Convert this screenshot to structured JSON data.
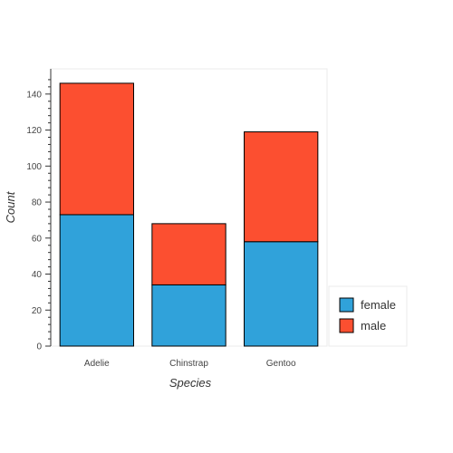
{
  "chart_data": {
    "type": "bar",
    "stacked": true,
    "title": "",
    "xlabel": "Species",
    "ylabel": "Count",
    "categories": [
      "Adelie",
      "Chinstrap",
      "Gentoo"
    ],
    "series": [
      {
        "name": "female",
        "values": [
          73,
          34,
          58
        ],
        "color": "#30a2da"
      },
      {
        "name": "male",
        "values": [
          73,
          34,
          61
        ],
        "color": "#fc4f30"
      }
    ],
    "ylim": [
      0,
      154
    ],
    "yticks": [
      0,
      20,
      40,
      60,
      80,
      100,
      120,
      140
    ],
    "grid": false,
    "legend_position": "bottom-right"
  }
}
